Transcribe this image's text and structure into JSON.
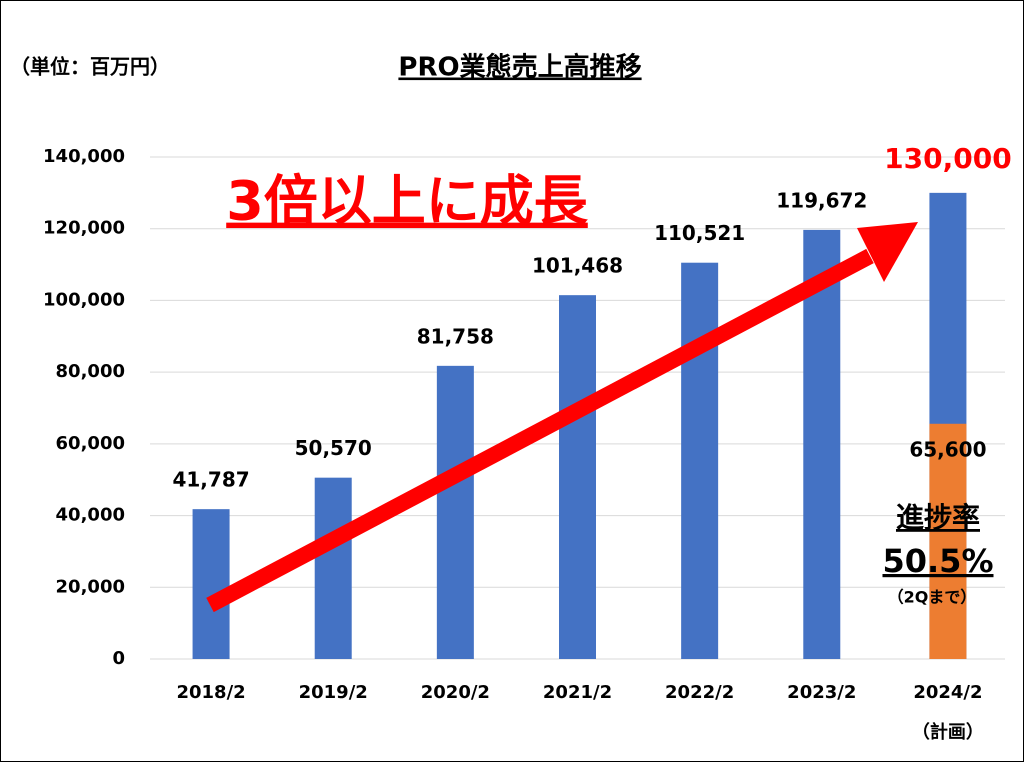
{
  "chart_data": {
    "type": "bar",
    "title": "PRO業態売上高推移",
    "unit_label": "（単位：百万円）",
    "categories": [
      "2018/2",
      "2019/2",
      "2020/2",
      "2021/2",
      "2022/2",
      "2023/2",
      "2024/2"
    ],
    "category_note": "（計画）",
    "values": [
      41787,
      50570,
      81758,
      101468,
      110521,
      119672,
      130000
    ],
    "value_labels": [
      "41,787",
      "50,570",
      "81,758",
      "101,468",
      "110,521",
      "119,672",
      "130,000"
    ],
    "color": "#4472c4",
    "overlay": {
      "values": [
        null,
        null,
        null,
        null,
        null,
        null,
        65600
      ],
      "value_labels": [
        null,
        null,
        null,
        null,
        null,
        null,
        "65,600"
      ],
      "color": "#ed7d31"
    },
    "ylim": [
      0,
      140000
    ],
    "yticks": [
      0,
      {
        "value": 20000,
        "label": "20,000"
      },
      {
        "value": 40000,
        "label": "40,000"
      },
      {
        "value": 60000,
        "label": "60,000"
      },
      {
        "value": 80000,
        "label": "80,000"
      },
      {
        "value": 100000,
        "label": "100,000"
      },
      {
        "value": 120000,
        "label": "120,000"
      },
      {
        "value": 140000,
        "label": "140,000"
      }
    ],
    "grid": true,
    "annotation": "3倍以上に成長",
    "annotation_color": "#ff0000",
    "progress_title": "進捗率",
    "progress_rate": "50.5%",
    "progress_note": "（2Qまで）"
  }
}
